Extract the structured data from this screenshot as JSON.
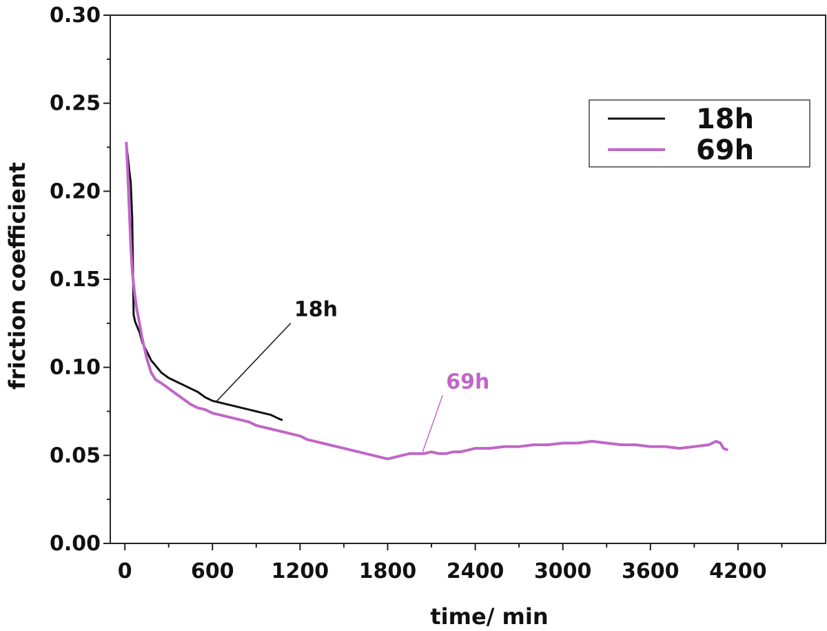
{
  "chart_data": {
    "type": "line",
    "title": "",
    "xlabel": "time/ min",
    "ylabel": "friction coefficient",
    "xlim": [
      -100,
      4800
    ],
    "ylim": [
      0.0,
      0.3
    ],
    "x_ticks": [
      0,
      600,
      1200,
      1800,
      2400,
      3000,
      3600,
      4200
    ],
    "x_tick_labels": [
      "0",
      "600",
      "1200",
      "1800",
      "2400",
      "3000",
      "3600",
      "4200"
    ],
    "y_ticks": [
      0.0,
      0.05,
      0.1,
      0.15,
      0.2,
      0.25,
      0.3
    ],
    "y_tick_labels": [
      "0.00",
      "0.05",
      "0.10",
      "0.15",
      "0.20",
      "0.25",
      "0.30"
    ],
    "grid": false,
    "legend": {
      "position": "top-right",
      "entries": [
        "18h",
        "69h"
      ]
    },
    "series": [
      {
        "name": "18h",
        "color": "#111111",
        "x": [
          10,
          20,
          30,
          40,
          50,
          55,
          60,
          70,
          80,
          90,
          100,
          120,
          150,
          180,
          210,
          250,
          300,
          350,
          400,
          450,
          500,
          550,
          600,
          650,
          700,
          750,
          800,
          850,
          900,
          950,
          1000,
          1050,
          1080
        ],
        "y": [
          0.227,
          0.22,
          0.212,
          0.205,
          0.185,
          0.16,
          0.13,
          0.126,
          0.124,
          0.122,
          0.12,
          0.114,
          0.109,
          0.104,
          0.101,
          0.097,
          0.094,
          0.092,
          0.09,
          0.088,
          0.086,
          0.083,
          0.081,
          0.08,
          0.079,
          0.078,
          0.077,
          0.076,
          0.075,
          0.074,
          0.073,
          0.071,
          0.07
        ]
      },
      {
        "name": "69h",
        "color": "#c066c8",
        "x": [
          10,
          20,
          30,
          40,
          50,
          60,
          70,
          80,
          100,
          120,
          150,
          180,
          210,
          250,
          300,
          350,
          400,
          450,
          500,
          550,
          600,
          650,
          700,
          750,
          800,
          850,
          900,
          950,
          1000,
          1050,
          1100,
          1150,
          1200,
          1250,
          1300,
          1350,
          1400,
          1450,
          1500,
          1550,
          1600,
          1650,
          1700,
          1750,
          1800,
          1850,
          1900,
          1950,
          2000,
          2050,
          2100,
          2150,
          2200,
          2250,
          2300,
          2350,
          2400,
          2500,
          2600,
          2700,
          2800,
          2900,
          3000,
          3100,
          3200,
          3300,
          3400,
          3500,
          3600,
          3700,
          3800,
          3900,
          4000,
          4050,
          4080,
          4100,
          4130
        ],
        "y": [
          0.228,
          0.21,
          0.19,
          0.17,
          0.155,
          0.147,
          0.14,
          0.134,
          0.125,
          0.116,
          0.105,
          0.097,
          0.093,
          0.091,
          0.088,
          0.085,
          0.082,
          0.079,
          0.077,
          0.076,
          0.074,
          0.073,
          0.072,
          0.071,
          0.07,
          0.069,
          0.067,
          0.066,
          0.065,
          0.064,
          0.063,
          0.062,
          0.061,
          0.059,
          0.058,
          0.057,
          0.056,
          0.055,
          0.054,
          0.053,
          0.052,
          0.051,
          0.05,
          0.049,
          0.048,
          0.049,
          0.05,
          0.051,
          0.051,
          0.051,
          0.052,
          0.051,
          0.051,
          0.052,
          0.052,
          0.053,
          0.054,
          0.054,
          0.055,
          0.055,
          0.056,
          0.056,
          0.057,
          0.057,
          0.058,
          0.057,
          0.056,
          0.056,
          0.055,
          0.055,
          0.054,
          0.055,
          0.056,
          0.058,
          0.057,
          0.054,
          0.053
        ]
      }
    ],
    "annotations": [
      {
        "text": "18h",
        "color": "#111111",
        "series": "18h",
        "x": 1160,
        "y": 0.129,
        "point_x": 620,
        "point_y": 0.08
      },
      {
        "text": "69h",
        "color": "#c066c8",
        "series": "69h",
        "x": 2200,
        "y": 0.088,
        "point_x": 2040,
        "point_y": 0.052
      }
    ]
  }
}
